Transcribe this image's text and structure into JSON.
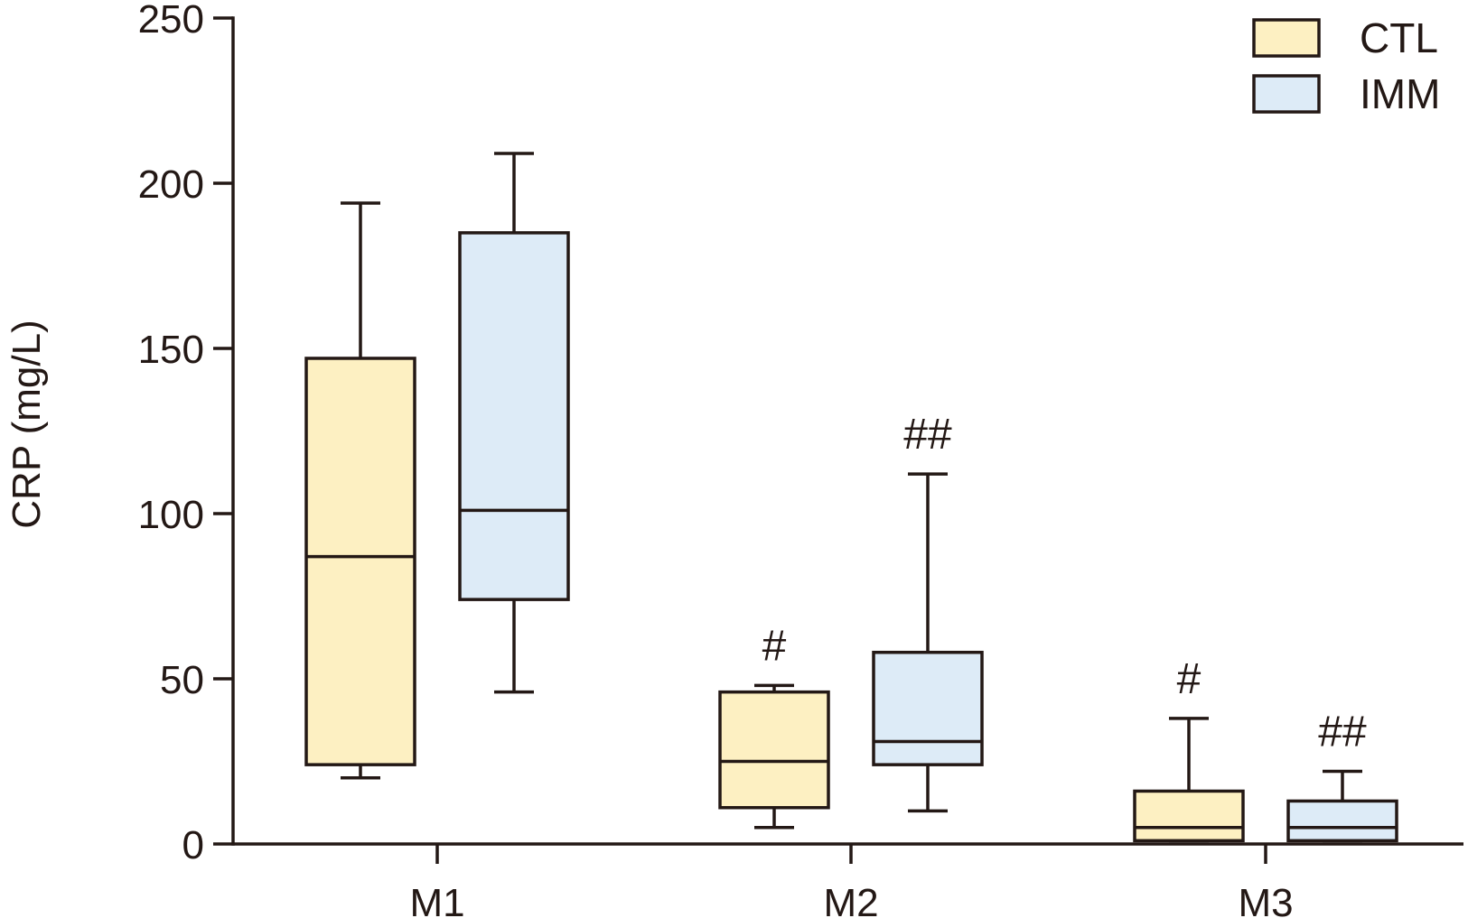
{
  "chart_data": {
    "type": "box",
    "ylabel": "CRP (mg/L)",
    "xlabel": "",
    "ylim": [
      0,
      250
    ],
    "y_ticks": [
      "0",
      "50",
      "100",
      "150",
      "200",
      "250"
    ],
    "categories": [
      "M1",
      "M2",
      "M3"
    ],
    "legend": {
      "placement": "top-right"
    },
    "series": [
      {
        "name": "CTL",
        "color": "#fdf0c2",
        "boxes": [
          {
            "category": "M1",
            "min": 20,
            "q1": 24,
            "median": 87,
            "q3": 147,
            "max": 194,
            "annotation": ""
          },
          {
            "category": "M2",
            "min": 5,
            "q1": 11,
            "median": 25,
            "q3": 46,
            "max": 48,
            "annotation": "#"
          },
          {
            "category": "M3",
            "min": 1,
            "q1": 1,
            "median": 5,
            "q3": 16,
            "max": 38,
            "annotation": "#"
          }
        ]
      },
      {
        "name": "IMM",
        "color": "#ddebf7",
        "boxes": [
          {
            "category": "M1",
            "min": 46,
            "q1": 74,
            "median": 101,
            "q3": 185,
            "max": 209,
            "annotation": ""
          },
          {
            "category": "M2",
            "min": 10,
            "q1": 24,
            "median": 31,
            "q3": 58,
            "max": 112,
            "annotation": "##"
          },
          {
            "category": "M3",
            "min": 1,
            "q1": 1,
            "median": 5,
            "q3": 13,
            "max": 22,
            "annotation": "##"
          }
        ]
      }
    ]
  }
}
